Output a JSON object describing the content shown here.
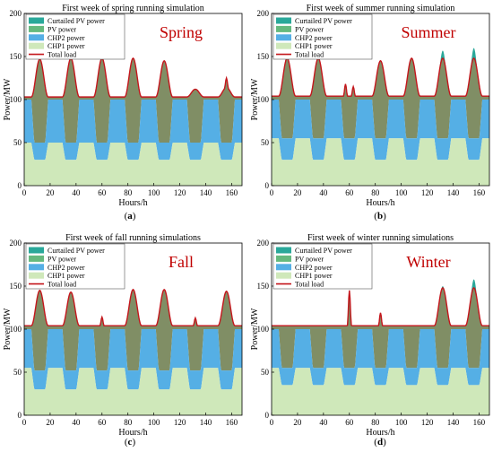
{
  "figure": {
    "legend_entries": [
      "Curtailed PV power",
      "PV power",
      "CHP2 power",
      "CHP1 power",
      "Total load"
    ],
    "colors": {
      "curtailed_pv": "#2aa89a",
      "pv": "#66b97e",
      "chp2": "#55afe5",
      "chp1": "#cfe8ba",
      "total_load": "#c4161c",
      "load_fill": "#6a7a4a"
    }
  },
  "chart_data": [
    {
      "type": "area",
      "panel_label": "(a)",
      "title": "First week of spring running simulation",
      "season_label": "Spring",
      "xlabel": "Hours/h",
      "ylabel": "Power/MW",
      "xlim": [
        0,
        168
      ],
      "ylim": [
        0,
        200
      ],
      "xticks": [
        0,
        20,
        40,
        60,
        80,
        100,
        120,
        140,
        160
      ],
      "yticks": [
        0,
        50,
        100,
        150,
        200
      ],
      "legend": "top-left",
      "series": [
        {
          "name": "Curtailed PV power",
          "description": "none visible"
        },
        {
          "name": "PV power",
          "peak_hours": [
            12,
            36,
            60,
            84,
            108,
            132,
            156
          ],
          "peak_total_mw": [
            147,
            148,
            148,
            148,
            145,
            112,
            114
          ]
        },
        {
          "name": "CHP2 power",
          "base_mw": 100,
          "daytime_dip_mw": 50
        },
        {
          "name": "CHP1 power",
          "base_mw": 50,
          "daytime_dip_mw": 30
        },
        {
          "name": "Total load",
          "base_mw": 103,
          "spikes": [
            {
              "hour": 156,
              "value": 114
            }
          ]
        }
      ]
    },
    {
      "type": "area",
      "panel_label": "(b)",
      "title": "First week of summer running simulation",
      "season_label": "Summer",
      "xlabel": "Hours/h",
      "ylabel": "Power/MW",
      "xlim": [
        0,
        168
      ],
      "ylim": [
        0,
        200
      ],
      "xticks": [
        0,
        20,
        40,
        60,
        80,
        100,
        120,
        140,
        160
      ],
      "yticks": [
        0,
        50,
        100,
        150,
        200
      ],
      "legend": "top-left",
      "series": [
        {
          "name": "Curtailed PV power",
          "peak_total_mw": [
            152,
            150,
            100,
            100,
            157,
            160,
            160,
            163
          ]
        },
        {
          "name": "PV power",
          "peak_hours": [
            12,
            36,
            84,
            108,
            132,
            156
          ],
          "peak_total_mw": [
            148,
            148,
            145,
            148,
            148,
            148
          ]
        },
        {
          "name": "CHP2 power",
          "base_mw": 100,
          "daytime_dip_mw": 55
        },
        {
          "name": "CHP1 power",
          "base_mw": 55,
          "daytime_dip_mw": 30
        },
        {
          "name": "Total load",
          "base_mw": 104,
          "spikes": [
            {
              "hour": 57,
              "value": 118
            },
            {
              "hour": 63,
              "value": 115
            }
          ]
        }
      ]
    },
    {
      "type": "area",
      "panel_label": "(c)",
      "title": "First week of fall running simulations",
      "season_label": "Fall",
      "xlabel": "Hours/h",
      "ylabel": "Power/MW",
      "xlim": [
        0,
        168
      ],
      "ylim": [
        0,
        200
      ],
      "xticks": [
        0,
        20,
        40,
        60,
        80,
        100,
        120,
        140,
        160
      ],
      "yticks": [
        0,
        50,
        100,
        150,
        200
      ],
      "legend": "top-left",
      "series": [
        {
          "name": "Curtailed PV power",
          "description": "none visible"
        },
        {
          "name": "PV power",
          "peak_hours": [
            12,
            36,
            84,
            108,
            156
          ],
          "peak_total_mw": [
            145,
            143,
            146,
            146,
            144
          ]
        },
        {
          "name": "CHP2 power",
          "base_mw": 100,
          "daytime_dip_mw": 52
        },
        {
          "name": "CHP1 power",
          "base_mw": 55,
          "daytime_dip_mw": 30
        },
        {
          "name": "Total load",
          "base_mw": 104,
          "spikes": [
            {
              "hour": 60,
              "value": 114
            },
            {
              "hour": 132,
              "value": 113
            }
          ]
        }
      ]
    },
    {
      "type": "area",
      "panel_label": "(d)",
      "title": "First week of winter running simulations",
      "season_label": "Winter",
      "xlabel": "Hours/h",
      "ylabel": "Power/MW",
      "xlim": [
        0,
        168
      ],
      "ylim": [
        0,
        200
      ],
      "xticks": [
        0,
        20,
        40,
        60,
        80,
        100,
        120,
        140,
        160
      ],
      "yticks": [
        0,
        50,
        100,
        150,
        200
      ],
      "legend": "top-left",
      "series": [
        {
          "name": "Curtailed PV power",
          "peak_total_mw": [
            150,
            158
          ]
        },
        {
          "name": "PV power",
          "peak_hours": [
            132,
            156
          ],
          "peak_total_mw": [
            148,
            148
          ]
        },
        {
          "name": "CHP2 power",
          "base_mw": 100,
          "daytime_dip_mw": 55
        },
        {
          "name": "CHP1 power",
          "base_mw": 55,
          "daytime_dip_mw": 35
        },
        {
          "name": "Total load",
          "base_mw": 104,
          "spikes": [
            {
              "hour": 60,
              "value": 145
            },
            {
              "hour": 84,
              "value": 119
            }
          ]
        }
      ]
    }
  ]
}
